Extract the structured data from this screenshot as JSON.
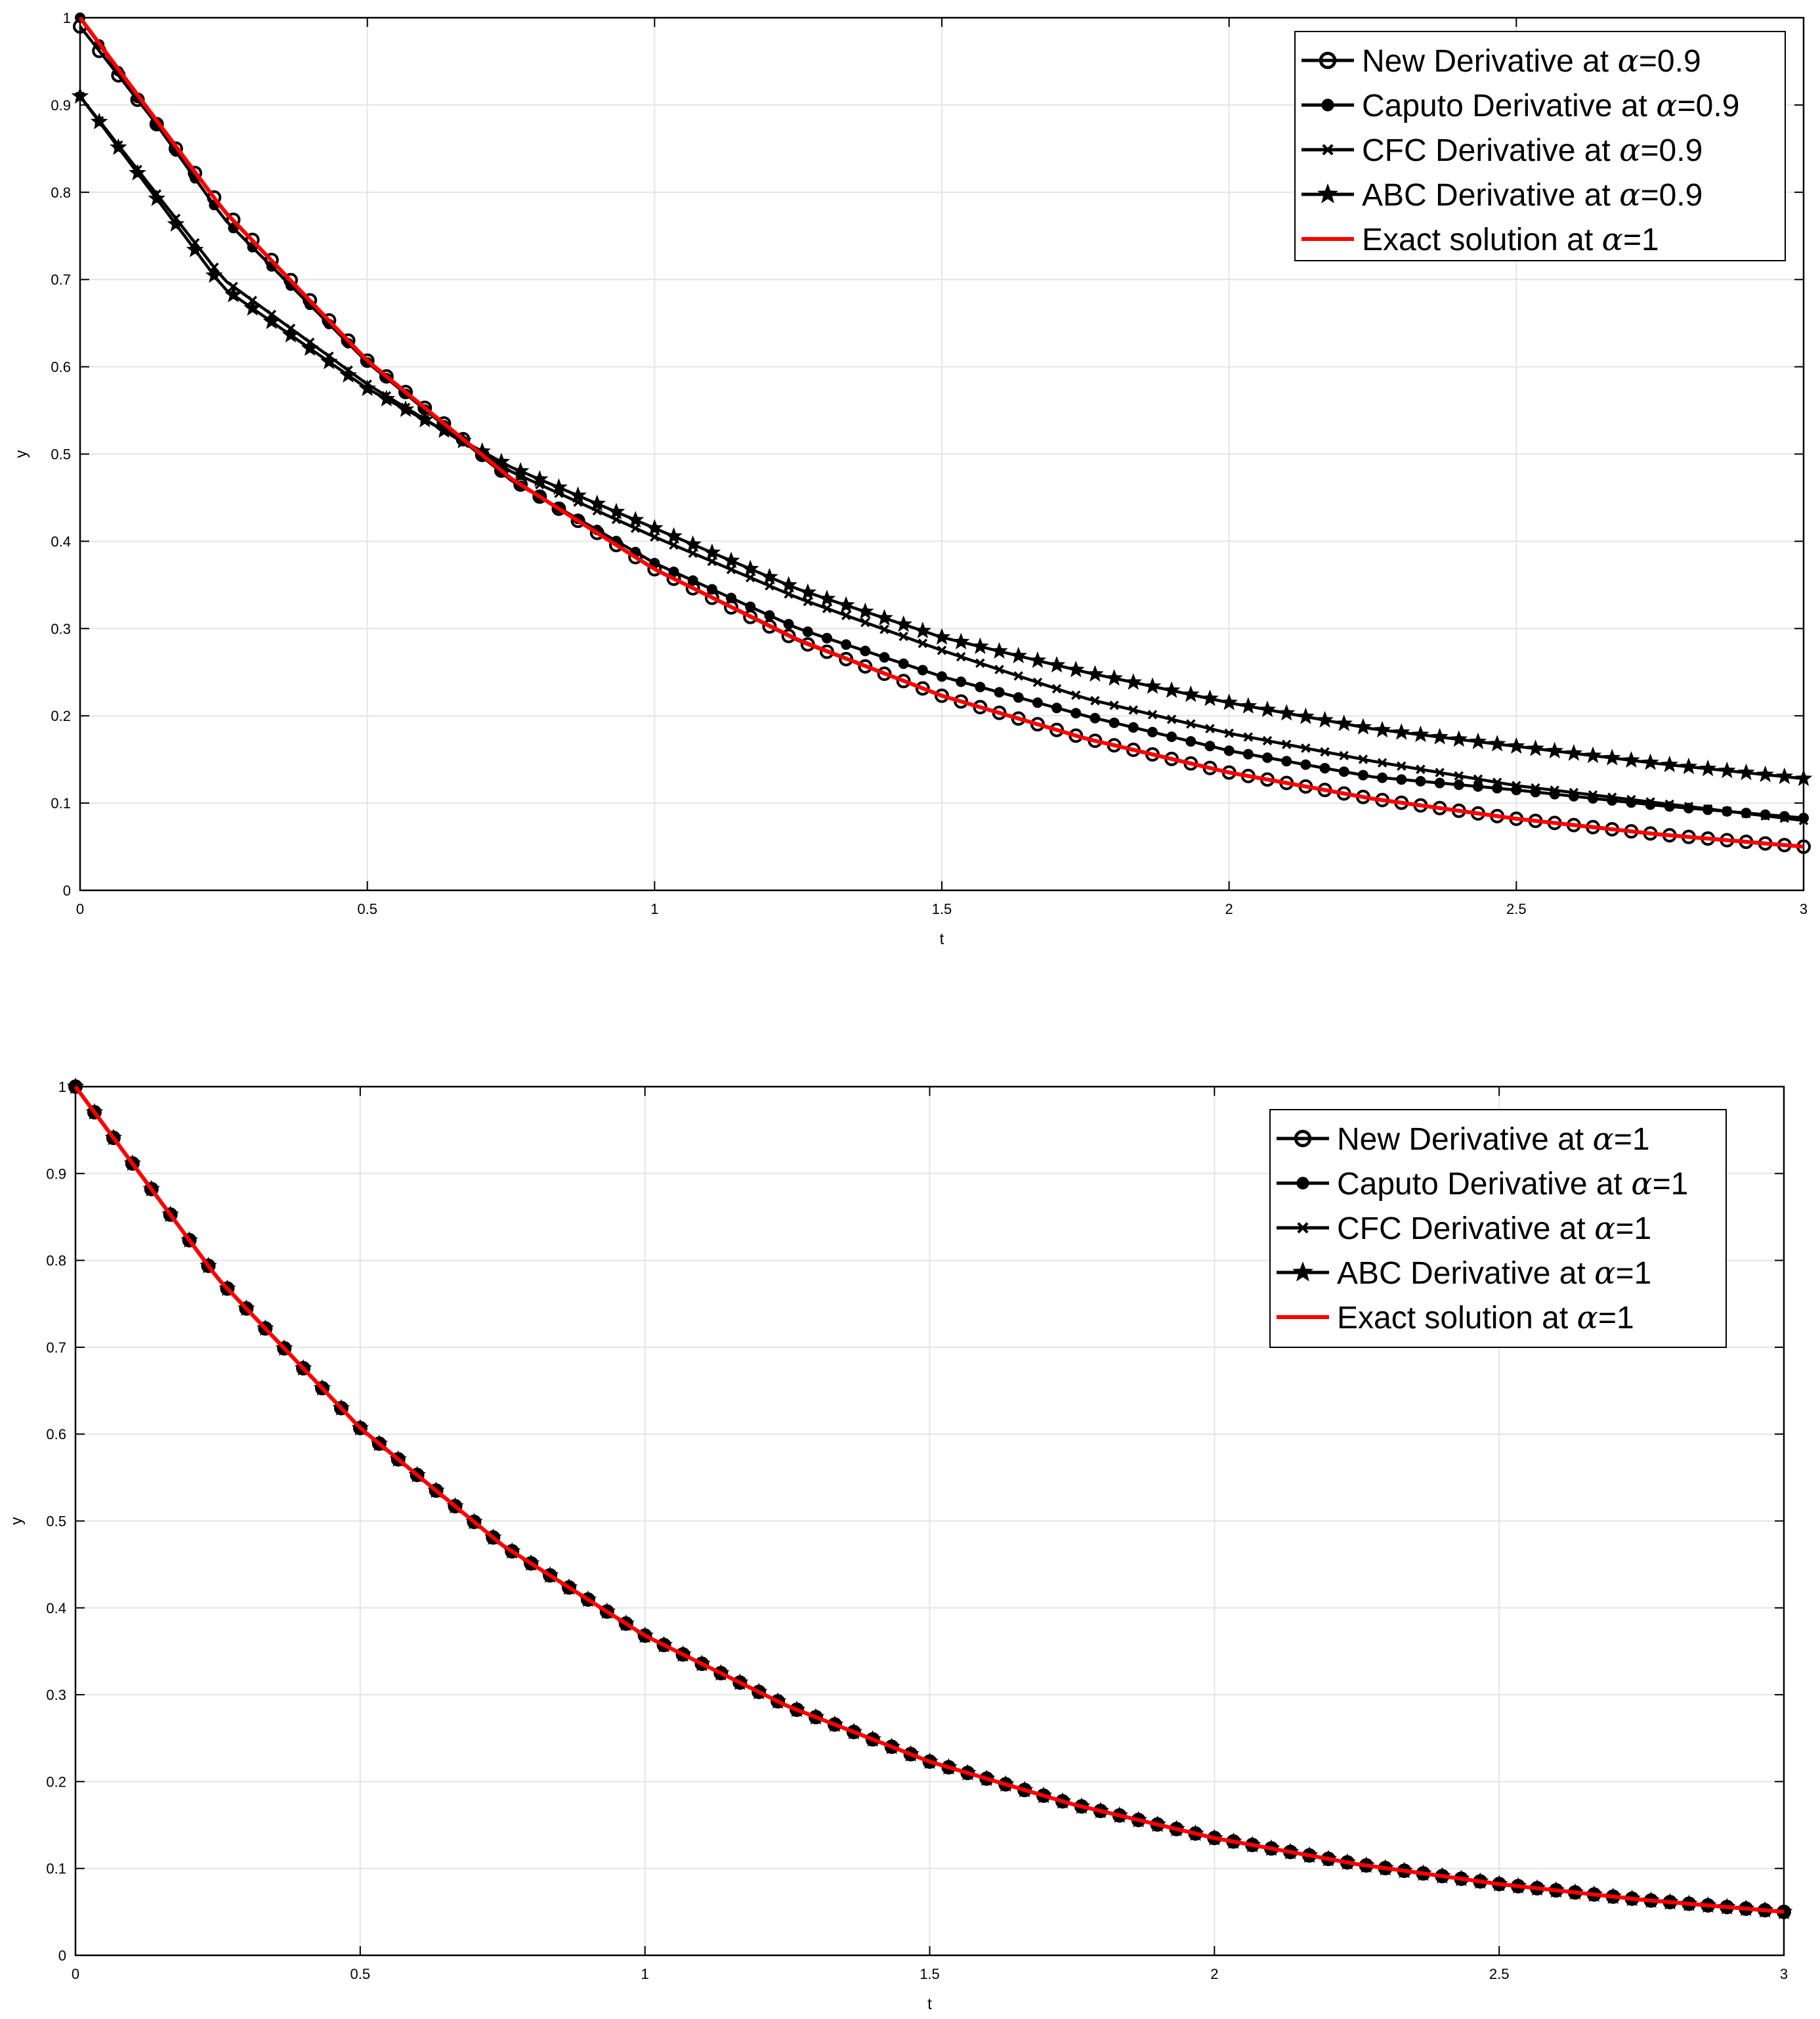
{
  "chart_data": [
    {
      "type": "line",
      "title": "",
      "xlabel": "t",
      "ylabel": "y",
      "xlim": [
        0,
        3
      ],
      "ylim": [
        0,
        1
      ],
      "grid": true,
      "legend_position": "top-right",
      "xticks": [
        "0",
        "0.5",
        "1",
        "1.5",
        "2",
        "2.5",
        "3"
      ],
      "yticks": [
        "0",
        "0.1",
        "0.2",
        "0.3",
        "0.4",
        "0.5",
        "0.6",
        "0.7",
        "0.8",
        "0.9",
        "1"
      ],
      "x": [
        0,
        0.25,
        0.5,
        0.75,
        1,
        1.25,
        1.5,
        1.75,
        2,
        2.25,
        2.5,
        2.75,
        3
      ],
      "series": [
        {
          "name_prefix": "New Derivative at ",
          "alpha_symbol": "α",
          "name_suffix": "=0.9",
          "marker": "open-circle",
          "color": "#000000",
          "values": [
            0.99,
            0.78,
            0.607,
            0.472,
            0.368,
            0.286,
            0.223,
            0.174,
            0.135,
            0.105,
            0.082,
            0.064,
            0.05
          ]
        },
        {
          "name_prefix": "Caputo Derivative at ",
          "alpha_symbol": "α",
          "name_suffix": "=0.9",
          "marker": "dot",
          "color": "#000000",
          "values": [
            1.0,
            0.77,
            0.605,
            0.47,
            0.375,
            0.3,
            0.245,
            0.2,
            0.16,
            0.13,
            0.115,
            0.097,
            0.083
          ]
        },
        {
          "name_prefix": "CFC Derivative at ",
          "alpha_symbol": "α",
          "name_suffix": "=0.9",
          "marker": "x",
          "color": "#000000",
          "values": [
            0.91,
            0.7,
            0.58,
            0.48,
            0.405,
            0.335,
            0.275,
            0.22,
            0.18,
            0.148,
            0.12,
            0.1,
            0.08
          ]
        },
        {
          "name_prefix": "ABC Derivative at ",
          "alpha_symbol": "α",
          "name_suffix": "=0.9",
          "marker": "star",
          "color": "#000000",
          "values": [
            0.91,
            0.69,
            0.575,
            0.485,
            0.415,
            0.345,
            0.29,
            0.25,
            0.215,
            0.185,
            0.165,
            0.145,
            0.128
          ]
        },
        {
          "name_prefix": "Exact solution at ",
          "alpha_symbol": "α",
          "name_suffix": "=1",
          "marker": "none",
          "color": "#ff0000",
          "values": [
            1.0,
            0.779,
            0.607,
            0.472,
            0.368,
            0.287,
            0.223,
            0.174,
            0.135,
            0.105,
            0.082,
            0.064,
            0.05
          ]
        }
      ]
    },
    {
      "type": "line",
      "title": "",
      "xlabel": "t",
      "ylabel": "y",
      "xlim": [
        0,
        3
      ],
      "ylim": [
        0,
        1
      ],
      "grid": true,
      "legend_position": "top-right",
      "xticks": [
        "0",
        "0.5",
        "1",
        "1.5",
        "2",
        "2.5",
        "3"
      ],
      "yticks": [
        "0",
        "0.1",
        "0.2",
        "0.3",
        "0.4",
        "0.5",
        "0.6",
        "0.7",
        "0.8",
        "0.9",
        "1"
      ],
      "x": [
        0,
        0.25,
        0.5,
        0.75,
        1,
        1.25,
        1.5,
        1.75,
        2,
        2.25,
        2.5,
        2.75,
        3
      ],
      "series": [
        {
          "name_prefix": "New Derivative at ",
          "alpha_symbol": "α",
          "name_suffix": "=1",
          "marker": "open-circle",
          "color": "#000000",
          "values": [
            1.0,
            0.779,
            0.607,
            0.472,
            0.368,
            0.287,
            0.223,
            0.174,
            0.135,
            0.105,
            0.082,
            0.064,
            0.05
          ]
        },
        {
          "name_prefix": "Caputo Derivative at ",
          "alpha_symbol": "α",
          "name_suffix": "=1",
          "marker": "dot",
          "color": "#000000",
          "values": [
            1.0,
            0.779,
            0.607,
            0.472,
            0.368,
            0.287,
            0.223,
            0.174,
            0.135,
            0.105,
            0.082,
            0.064,
            0.05
          ]
        },
        {
          "name_prefix": "CFC Derivative at ",
          "alpha_symbol": "α",
          "name_suffix": "=1",
          "marker": "x",
          "color": "#000000",
          "values": [
            1.0,
            0.779,
            0.607,
            0.472,
            0.368,
            0.287,
            0.223,
            0.174,
            0.135,
            0.105,
            0.082,
            0.064,
            0.05
          ]
        },
        {
          "name_prefix": "ABC Derivative at ",
          "alpha_symbol": "α",
          "name_suffix": "=1",
          "marker": "star",
          "color": "#000000",
          "values": [
            1.0,
            0.779,
            0.607,
            0.472,
            0.368,
            0.287,
            0.223,
            0.174,
            0.135,
            0.105,
            0.082,
            0.064,
            0.05
          ]
        },
        {
          "name_prefix": "Exact solution at ",
          "alpha_symbol": "α",
          "name_suffix": "=1",
          "marker": "none",
          "color": "#ff0000",
          "values": [
            1.0,
            0.779,
            0.607,
            0.472,
            0.368,
            0.287,
            0.223,
            0.174,
            0.135,
            0.105,
            0.082,
            0.064,
            0.05
          ]
        }
      ]
    }
  ]
}
